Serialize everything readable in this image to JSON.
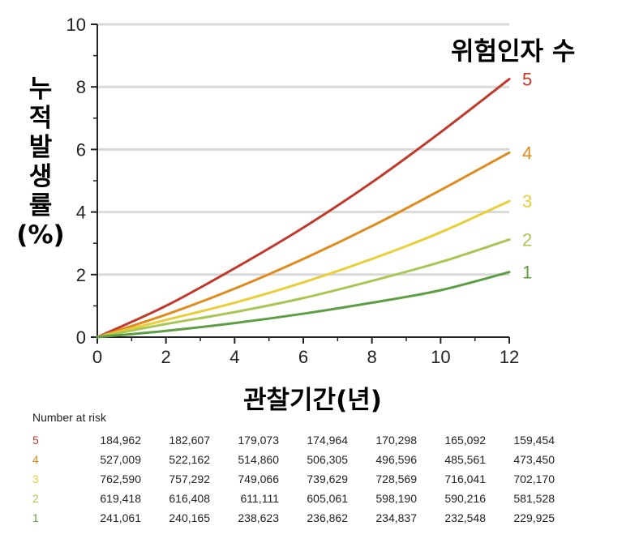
{
  "chart_data": {
    "type": "line",
    "title": "",
    "xlabel": "관찰기간(년)",
    "ylabel_chars": [
      "누",
      "적",
      "발",
      "생",
      "률",
      "(%)"
    ],
    "xlim": [
      0,
      12
    ],
    "ylim": [
      0,
      10
    ],
    "x_ticks": [
      "0",
      "2",
      "4",
      "6",
      "8",
      "10",
      "12"
    ],
    "y_ticks": [
      "0",
      "2",
      "4",
      "6",
      "8",
      "10"
    ],
    "grid": "horizontal",
    "legend_title": "위험인자 수",
    "legend_placement": "right, at line ends",
    "series": [
      {
        "name": "5",
        "color": "#c0392b",
        "x": [
          0,
          2,
          4,
          6,
          8,
          10,
          12
        ],
        "values": [
          0,
          1.0,
          2.2,
          3.5,
          4.95,
          6.55,
          8.25
        ]
      },
      {
        "name": "4",
        "color": "#e08b1e",
        "x": [
          0,
          2,
          4,
          6,
          8,
          10,
          12
        ],
        "values": [
          0,
          0.72,
          1.55,
          2.5,
          3.55,
          4.7,
          5.9
        ]
      },
      {
        "name": "3",
        "color": "#e8cf3a",
        "x": [
          0,
          2,
          4,
          6,
          8,
          10,
          12
        ],
        "values": [
          0,
          0.55,
          1.1,
          1.75,
          2.5,
          3.35,
          4.35
        ]
      },
      {
        "name": "2",
        "color": "#a9c654",
        "x": [
          0,
          2,
          4,
          6,
          8,
          10,
          12
        ],
        "values": [
          0,
          0.42,
          0.8,
          1.25,
          1.8,
          2.4,
          3.12
        ]
      },
      {
        "name": "1",
        "color": "#5e9e43",
        "x": [
          0,
          2,
          4,
          6,
          8,
          10,
          12
        ],
        "values": [
          0,
          0.2,
          0.45,
          0.75,
          1.1,
          1.5,
          2.08
        ]
      }
    ]
  },
  "risk_table": {
    "title": "Number at risk",
    "rows": [
      {
        "label": "5",
        "color": "#c0392b",
        "values": [
          "184,962",
          "182,607",
          "179,073",
          "174,964",
          "170,298",
          "165,092",
          "159,454"
        ]
      },
      {
        "label": "4",
        "color": "#e08b1e",
        "values": [
          "527,009",
          "522,162",
          "514,860",
          "506,305",
          "496,596",
          "485,561",
          "473,450"
        ]
      },
      {
        "label": "3",
        "color": "#e8cf3a",
        "values": [
          "762,590",
          "757,292",
          "749,066",
          "739,629",
          "728,569",
          "716,041",
          "702,170"
        ]
      },
      {
        "label": "2",
        "color": "#a9c654",
        "values": [
          "619,418",
          "616,408",
          "611,111",
          "605,061",
          "598,190",
          "590,216",
          "581,528"
        ]
      },
      {
        "label": "1",
        "color": "#5e9e43",
        "values": [
          "241,061",
          "240,165",
          "238,623",
          "236,862",
          "234,837",
          "232,548",
          "229,925"
        ]
      }
    ]
  }
}
